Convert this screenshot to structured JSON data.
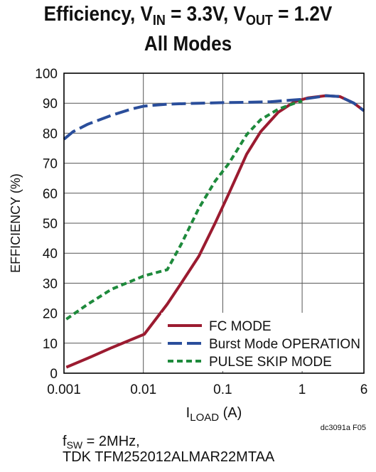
{
  "title": {
    "line1_prefix": "Efficiency, V",
    "line1_vin_sub": "IN",
    "line1_mid": " = 3.3V, V",
    "line1_vout_sub": "OUT",
    "line1_suffix": " = 1.2V",
    "line2": "All Modes"
  },
  "notes": {
    "fsw_prefix": "f",
    "fsw_sub": "SW",
    "fsw_suffix": " = 2MHz,",
    "inductor": "TDK TFM252012ALMAR22MTAA"
  },
  "figure_id": "dc3091a F05",
  "chart_data": {
    "type": "line",
    "title": "Efficiency, VIN = 3.3V, VOUT = 1.2V All Modes",
    "xlabel": "I_LOAD (A)",
    "xlabel_main": "I",
    "xlabel_sub": "LOAD",
    "xlabel_unit": " (A)",
    "ylabel": "EFFICIENCY (%)",
    "x_scale": "log",
    "xlim": [
      0.001,
      6
    ],
    "ylim": [
      0,
      100
    ],
    "x_ticks": [
      0.001,
      0.01,
      0.1,
      1,
      6
    ],
    "x_tick_labels": [
      "0.001",
      "0.01",
      "0.1",
      "1",
      "6"
    ],
    "y_ticks": [
      0,
      10,
      20,
      30,
      40,
      50,
      60,
      70,
      80,
      90,
      100
    ],
    "y_tick_labels": [
      "0",
      "10",
      "20",
      "30",
      "40",
      "50",
      "60",
      "70",
      "80",
      "90",
      "100"
    ],
    "grid": true,
    "legend_position": "bottom-right",
    "series": [
      {
        "name": "FC MODE",
        "color": "#9b1b30",
        "dash": "solid",
        "points": [
          [
            0.00107,
            2
          ],
          [
            0.002,
            5
          ],
          [
            0.004,
            8.5
          ],
          [
            0.0103,
            13
          ],
          [
            0.02,
            23
          ],
          [
            0.03,
            30
          ],
          [
            0.05,
            39
          ],
          [
            0.08,
            50
          ],
          [
            0.12,
            60
          ],
          [
            0.2,
            73
          ],
          [
            0.3,
            80.5
          ],
          [
            0.5,
            87
          ],
          [
            0.8,
            90.5
          ],
          [
            1.2,
            91.8
          ],
          [
            2.0,
            92.5
          ],
          [
            3.0,
            92.2
          ],
          [
            4.5,
            90
          ],
          [
            6,
            87.5
          ]
        ]
      },
      {
        "name": "Burst Mode OPERATION",
        "color": "#2a4e9b",
        "dash": "longdash",
        "points": [
          [
            0.001,
            78
          ],
          [
            0.0013,
            80.5
          ],
          [
            0.002,
            83
          ],
          [
            0.004,
            86
          ],
          [
            0.007,
            88
          ],
          [
            0.01,
            89
          ],
          [
            0.02,
            89.7
          ],
          [
            0.05,
            90
          ],
          [
            0.1,
            90.2
          ],
          [
            0.2,
            90.3
          ],
          [
            0.4,
            90.5
          ],
          [
            0.7,
            91
          ],
          [
            1.0,
            91.3
          ],
          [
            1.5,
            92
          ],
          [
            2.0,
            92.5
          ],
          [
            3.0,
            92.2
          ],
          [
            4.5,
            90
          ],
          [
            6,
            87.5
          ]
        ]
      },
      {
        "name": "PULSE SKIP MODE",
        "color": "#1e8a3c",
        "dash": "shortdash",
        "points": [
          [
            0.00107,
            18
          ],
          [
            0.002,
            23
          ],
          [
            0.004,
            28
          ],
          [
            0.0103,
            32.5
          ],
          [
            0.02,
            34.5
          ],
          [
            0.03,
            43
          ],
          [
            0.05,
            55
          ],
          [
            0.08,
            64
          ],
          [
            0.12,
            70
          ],
          [
            0.2,
            79.5
          ],
          [
            0.3,
            84.5
          ],
          [
            0.5,
            88
          ],
          [
            0.8,
            90
          ],
          [
            1.0,
            90.7
          ]
        ]
      }
    ]
  }
}
